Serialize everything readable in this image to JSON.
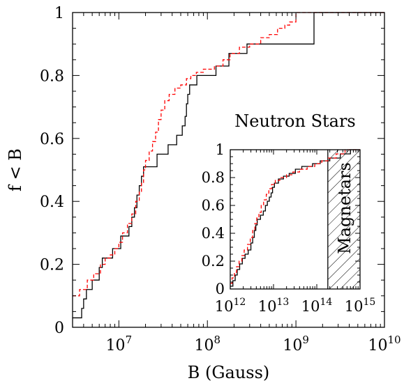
{
  "chart_data": [
    {
      "id": "main",
      "type": "line",
      "step": true,
      "title": "",
      "xlabel": "B (Gauss)",
      "ylabel": "f < B",
      "xscale": "log",
      "xlim": [
        3000000.0,
        10000000000.0
      ],
      "ylim": [
        0,
        1
      ],
      "xticks": [
        {
          "value": 10000000.0,
          "base": "10",
          "exp": "7"
        },
        {
          "value": 100000000.0,
          "base": "10",
          "exp": "8"
        },
        {
          "value": 1000000000.0,
          "base": "10",
          "exp": "9"
        },
        {
          "value": 10000000000.0,
          "base": "10",
          "exp": "10"
        }
      ],
      "yticks": [
        {
          "value": 0,
          "label": "0"
        },
        {
          "value": 0.2,
          "label": "0.2"
        },
        {
          "value": 0.4,
          "label": "0.4"
        },
        {
          "value": 0.6,
          "label": "0.6"
        },
        {
          "value": 0.8,
          "label": "0.8"
        },
        {
          "value": 1,
          "label": "1"
        }
      ],
      "series": [
        {
          "style": "solid",
          "color": "#000000",
          "points": [
            [
              3000000.0,
              0.03
            ],
            [
              3800000.0,
              0.06
            ],
            [
              4000000.0,
              0.09
            ],
            [
              4300000.0,
              0.12
            ],
            [
              5000000.0,
              0.15
            ],
            [
              6000000.0,
              0.19
            ],
            [
              6500000.0,
              0.22
            ],
            [
              8500000.0,
              0.25
            ],
            [
              10500000.0,
              0.29
            ],
            [
              13000000.0,
              0.32
            ],
            [
              14000000.0,
              0.35
            ],
            [
              15000000.0,
              0.38
            ],
            [
              16000000.0,
              0.42
            ],
            [
              17000000.0,
              0.45
            ],
            [
              18000000.0,
              0.48
            ],
            [
              19000000.0,
              0.51
            ],
            [
              27000000.0,
              0.55
            ],
            [
              36000000.0,
              0.58
            ],
            [
              45000000.0,
              0.61
            ],
            [
              52000000.0,
              0.64
            ],
            [
              56000000.0,
              0.67
            ],
            [
              58000000.0,
              0.71
            ],
            [
              60000000.0,
              0.74
            ],
            [
              63000000.0,
              0.77
            ],
            [
              76000000.0,
              0.8
            ],
            [
              125000000.0,
              0.83
            ],
            [
              175000000.0,
              0.87
            ],
            [
              280000000.0,
              0.9
            ],
            [
              1600000000.0,
              1.0
            ],
            [
              3000000000.0,
              1.0
            ]
          ]
        },
        {
          "style": "dashed",
          "color": "#ff0000",
          "points": [
            [
              3000000.0,
              0.1
            ],
            [
              3600000.0,
              0.12
            ],
            [
              4400000.0,
              0.15
            ],
            [
              5200000.0,
              0.17
            ],
            [
              6200000.0,
              0.2
            ],
            [
              7000000.0,
              0.22
            ],
            [
              8000000.0,
              0.23
            ],
            [
              9000000.0,
              0.25
            ],
            [
              10000000.0,
              0.27
            ],
            [
              11000000.0,
              0.3
            ],
            [
              12500000.0,
              0.33
            ],
            [
              14000000.0,
              0.36
            ],
            [
              15500000.0,
              0.4
            ],
            [
              17000000.0,
              0.43
            ],
            [
              18000000.0,
              0.46
            ],
            [
              19000000.0,
              0.5
            ],
            [
              20000000.0,
              0.53
            ],
            [
              22000000.0,
              0.56
            ],
            [
              24000000.0,
              0.59
            ],
            [
              26000000.0,
              0.62
            ],
            [
              28000000.0,
              0.66
            ],
            [
              30000000.0,
              0.69
            ],
            [
              33000000.0,
              0.72
            ],
            [
              37000000.0,
              0.74
            ],
            [
              43000000.0,
              0.76
            ],
            [
              50000000.0,
              0.77
            ],
            [
              58000000.0,
              0.79
            ],
            [
              65000000.0,
              0.8
            ],
            [
              75000000.0,
              0.81
            ],
            [
              90000000.0,
              0.82
            ],
            [
              120000000.0,
              0.83
            ],
            [
              150000000.0,
              0.85
            ],
            [
              180000000.0,
              0.87
            ],
            [
              230000000.0,
              0.89
            ],
            [
              300000000.0,
              0.9
            ],
            [
              400000000.0,
              0.92
            ],
            [
              500000000.0,
              0.93
            ],
            [
              620000000.0,
              0.95
            ],
            [
              750000000.0,
              0.96
            ],
            [
              850000000.0,
              0.97
            ],
            [
              1000000000.0,
              1.0
            ]
          ]
        }
      ]
    },
    {
      "id": "inset",
      "type": "line",
      "step": true,
      "title": "Neutron Stars",
      "xscale": "log",
      "xlim": [
        1000000000000.0,
        1000000000000000.0
      ],
      "ylim": [
        0,
        1
      ],
      "shaded_region": {
        "x_from": 180000000000000.0,
        "x_to": 1000000000000000.0,
        "label": "Magnetars",
        "pattern": "hatched"
      },
      "xticks": [
        {
          "value": 1000000000000.0,
          "base": "10",
          "exp": "12"
        },
        {
          "value": 10000000000000.0,
          "base": "10",
          "exp": "13"
        },
        {
          "value": 100000000000000.0,
          "base": "10",
          "exp": "14"
        },
        {
          "value": 1000000000000000.0,
          "base": "10",
          "exp": "15"
        }
      ],
      "yticks": [
        {
          "value": 0,
          "label": "0"
        },
        {
          "value": 0.2,
          "label": "0.2"
        },
        {
          "value": 0.4,
          "label": "0.4"
        },
        {
          "value": 0.6,
          "label": "0.6"
        },
        {
          "value": 0.8,
          "label": "0.8"
        },
        {
          "value": 1,
          "label": "1"
        }
      ],
      "series": [
        {
          "style": "solid",
          "color": "#000000",
          "points": [
            [
              1000000000000.0,
              0.02
            ],
            [
              1150000000000.0,
              0.06
            ],
            [
              1300000000000.0,
              0.1
            ],
            [
              1450000000000.0,
              0.14
            ],
            [
              1650000000000.0,
              0.18
            ],
            [
              1900000000000.0,
              0.22
            ],
            [
              2200000000000.0,
              0.25
            ],
            [
              2600000000000.0,
              0.28
            ],
            [
              3000000000000.0,
              0.33
            ],
            [
              3300000000000.0,
              0.37
            ],
            [
              3600000000000.0,
              0.42
            ],
            [
              3900000000000.0,
              0.46
            ],
            [
              4200000000000.0,
              0.5
            ],
            [
              5000000000000.0,
              0.53
            ],
            [
              5800000000000.0,
              0.56
            ],
            [
              6500000000000.0,
              0.6
            ],
            [
              7200000000000.0,
              0.63
            ],
            [
              8000000000000.0,
              0.66
            ],
            [
              8800000000000.0,
              0.69
            ],
            [
              9500000000000.0,
              0.73
            ],
            [
              10500000000000.0,
              0.76
            ],
            [
              13000000000000.0,
              0.79
            ],
            [
              17000000000000.0,
              0.81
            ],
            [
              23000000000000.0,
              0.83
            ],
            [
              32000000000000.0,
              0.86
            ],
            [
              45000000000000.0,
              0.88
            ],
            [
              80000000000000.0,
              0.9
            ],
            [
              120000000000000.0,
              0.92
            ],
            [
              200000000000000.0,
              0.94
            ],
            [
              350000000000000.0,
              0.97
            ],
            [
              600000000000000.0,
              1.0
            ],
            [
              1000000000000000.0,
              1.0
            ]
          ]
        },
        {
          "style": "dashed",
          "color": "#ff0000",
          "points": [
            [
              1000000000000.0,
              0.04
            ],
            [
              1100000000000.0,
              0.08
            ],
            [
              1250000000000.0,
              0.12
            ],
            [
              1400000000000.0,
              0.16
            ],
            [
              1600000000000.0,
              0.2
            ],
            [
              1850000000000.0,
              0.24
            ],
            [
              2100000000000.0,
              0.28
            ],
            [
              2500000000000.0,
              0.32
            ],
            [
              2900000000000.0,
              0.37
            ],
            [
              3300000000000.0,
              0.42
            ],
            [
              3700000000000.0,
              0.47
            ],
            [
              4100000000000.0,
              0.51
            ],
            [
              4600000000000.0,
              0.55
            ],
            [
              5200000000000.0,
              0.6
            ],
            [
              5900000000000.0,
              0.64
            ],
            [
              6800000000000.0,
              0.68
            ],
            [
              7800000000000.0,
              0.72
            ],
            [
              9000000000000.0,
              0.75
            ],
            [
              11000000000000.0,
              0.78
            ],
            [
              14000000000000.0,
              0.8
            ],
            [
              20000000000000.0,
              0.82
            ],
            [
              28000000000000.0,
              0.84
            ],
            [
              40000000000000.0,
              0.86
            ],
            [
              60000000000000.0,
              0.88
            ],
            [
              90000000000000.0,
              0.9
            ],
            [
              130000000000000.0,
              0.92
            ],
            [
              180000000000000.0,
              0.94
            ],
            [
              280000000000000.0,
              0.97
            ],
            [
              450000000000000.0,
              1.0
            ]
          ]
        }
      ]
    }
  ]
}
